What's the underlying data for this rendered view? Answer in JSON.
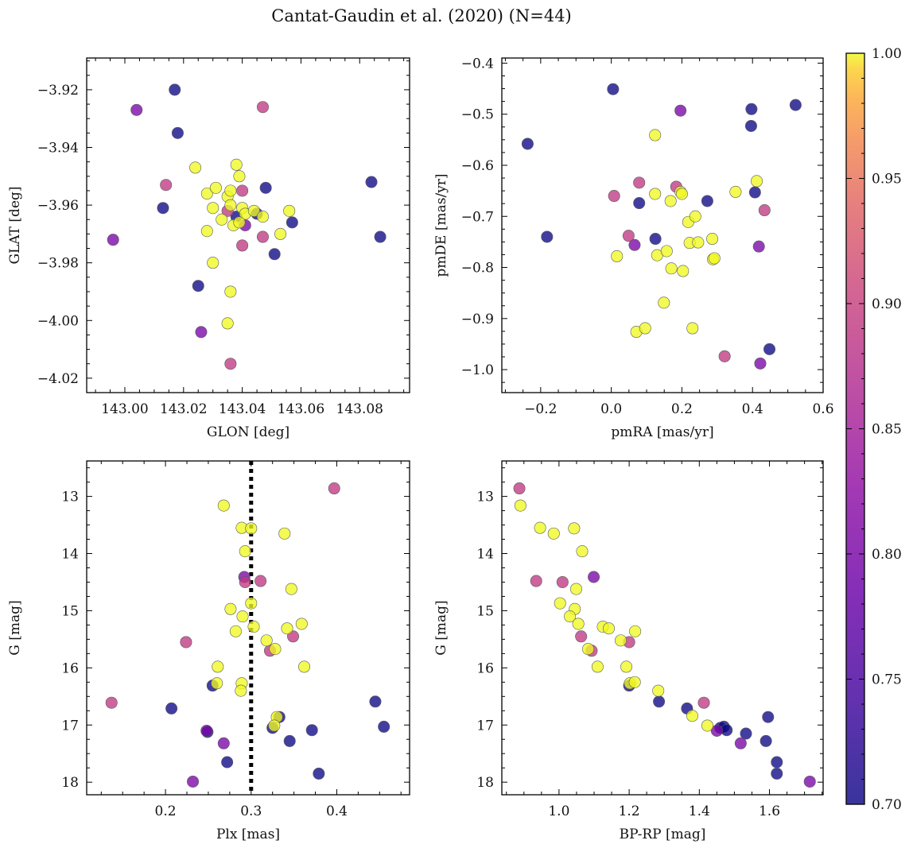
{
  "figure": {
    "title": "Cantat-Gaudin et al. (2020) (N=44)"
  },
  "colorbar": {
    "min": 0.7,
    "max": 1.0,
    "ticks": [
      "0.70",
      "0.75",
      "0.80",
      "0.85",
      "0.90",
      "0.95",
      "1.00"
    ],
    "colormap": "plasma",
    "alpha": 0.78
  },
  "chart_data": [
    {
      "type": "scatter",
      "id": "glon-glat",
      "xlabel": "GLON [deg]",
      "ylabel": "GLAT [deg]",
      "xlim": [
        142.987,
        143.097
      ],
      "ylim": [
        -3.909,
        -4.025
      ],
      "xticks": [
        143.0,
        143.02,
        143.04,
        143.06,
        143.08
      ],
      "xtick_labels": [
        "143.00",
        "143.02",
        "143.04",
        "143.06",
        "143.08"
      ],
      "yticks": [
        -3.92,
        -3.94,
        -3.96,
        -3.98,
        -4.0,
        -4.02
      ],
      "ytick_labels": [
        "−3.92",
        "−3.94",
        "−3.96",
        "−3.98",
        "−4.00",
        "−4.02"
      ],
      "points": [
        [
          143.017,
          -3.92,
          0.7
        ],
        [
          143.018,
          -3.935,
          0.7
        ],
        [
          143.013,
          -3.961,
          0.7
        ],
        [
          143.025,
          -3.988,
          0.7
        ],
        [
          143.038,
          -3.964,
          0.7
        ],
        [
          143.048,
          -3.954,
          0.7
        ],
        [
          143.051,
          -3.977,
          0.7
        ],
        [
          143.057,
          -3.966,
          0.7
        ],
        [
          143.084,
          -3.952,
          0.7
        ],
        [
          143.087,
          -3.971,
          0.7
        ],
        [
          143.045,
          -3.963,
          0.7
        ],
        [
          143.004,
          -3.927,
          0.8
        ],
        [
          142.996,
          -3.972,
          0.8
        ],
        [
          143.026,
          -4.004,
          0.8
        ],
        [
          143.041,
          -3.967,
          0.8
        ],
        [
          143.047,
          -3.926,
          0.89
        ],
        [
          143.014,
          -3.953,
          0.89
        ],
        [
          143.04,
          -3.955,
          0.89
        ],
        [
          143.04,
          -3.974,
          0.89
        ],
        [
          143.047,
          -3.971,
          0.89
        ],
        [
          143.036,
          -4.015,
          0.89
        ],
        [
          143.035,
          -3.962,
          0.89
        ],
        [
          143.024,
          -3.947,
          1.0
        ],
        [
          143.028,
          -3.956,
          1.0
        ],
        [
          143.031,
          -3.954,
          1.0
        ],
        [
          143.03,
          -3.961,
          1.0
        ],
        [
          143.033,
          -3.965,
          1.0
        ],
        [
          143.035,
          -3.957,
          1.0
        ],
        [
          143.036,
          -3.955,
          1.0
        ],
        [
          143.037,
          -3.967,
          1.0
        ],
        [
          143.038,
          -3.946,
          1.0
        ],
        [
          143.039,
          -3.95,
          1.0
        ],
        [
          143.04,
          -3.961,
          1.0
        ],
        [
          143.041,
          -3.963,
          1.0
        ],
        [
          143.044,
          -3.962,
          1.0
        ],
        [
          143.047,
          -3.964,
          1.0
        ],
        [
          143.053,
          -3.97,
          1.0
        ],
        [
          143.056,
          -3.962,
          1.0
        ],
        [
          143.03,
          -3.98,
          1.0
        ],
        [
          143.028,
          -3.969,
          1.0
        ],
        [
          143.036,
          -3.99,
          1.0
        ],
        [
          143.035,
          -4.001,
          1.0
        ],
        [
          143.036,
          -3.96,
          1.0
        ],
        [
          143.039,
          -3.966,
          1.0
        ]
      ]
    },
    {
      "type": "scatter",
      "id": "pmra-pmde",
      "xlabel": "pmRA [mas/yr]",
      "ylabel": "pmDE [mas/yr]",
      "xlim": [
        -0.31,
        0.6
      ],
      "ylim": [
        -0.39,
        -1.045
      ],
      "xticks": [
        -0.2,
        0.0,
        0.2,
        0.4,
        0.6
      ],
      "xtick_labels": [
        "−0.2",
        "0.0",
        "0.2",
        "0.4",
        "0.6"
      ],
      "yticks": [
        -0.4,
        -0.5,
        -0.6,
        -0.7,
        -0.8,
        -0.9,
        -1.0
      ],
      "ytick_labels": [
        "−0.4",
        "−0.5",
        "−0.6",
        "−0.7",
        "−0.8",
        "−0.9",
        "−1.0"
      ],
      "points": [
        [
          0.005,
          -0.451,
          0.7
        ],
        [
          -0.237,
          -0.558,
          0.7
        ],
        [
          -0.182,
          -0.74,
          0.7
        ],
        [
          0.079,
          -0.674,
          0.7
        ],
        [
          0.125,
          -0.744,
          0.7
        ],
        [
          0.272,
          -0.67,
          0.7
        ],
        [
          0.397,
          -0.49,
          0.7
        ],
        [
          0.396,
          -0.523,
          0.7
        ],
        [
          0.407,
          -0.653,
          0.7
        ],
        [
          0.448,
          -0.96,
          0.7
        ],
        [
          0.522,
          -0.482,
          0.7
        ],
        [
          0.196,
          -0.493,
          0.8
        ],
        [
          0.066,
          -0.756,
          0.8
        ],
        [
          0.418,
          -0.759,
          0.8
        ],
        [
          0.422,
          -0.988,
          0.8
        ],
        [
          0.008,
          -0.66,
          0.89
        ],
        [
          0.079,
          -0.634,
          0.89
        ],
        [
          0.049,
          -0.738,
          0.89
        ],
        [
          0.184,
          -0.642,
          0.89
        ],
        [
          0.434,
          -0.688,
          0.89
        ],
        [
          0.321,
          -0.974,
          0.89
        ],
        [
          0.124,
          -0.541,
          1.0
        ],
        [
          0.124,
          -0.656,
          1.0
        ],
        [
          0.168,
          -0.67,
          1.0
        ],
        [
          0.196,
          -0.652,
          1.0
        ],
        [
          0.2,
          -0.656,
          1.0
        ],
        [
          0.218,
          -0.711,
          1.0
        ],
        [
          0.238,
          -0.7,
          1.0
        ],
        [
          0.222,
          -0.752,
          1.0
        ],
        [
          0.246,
          -0.751,
          1.0
        ],
        [
          0.286,
          -0.744,
          1.0
        ],
        [
          0.288,
          -0.784,
          1.0
        ],
        [
          0.292,
          -0.782,
          1.0
        ],
        [
          0.13,
          -0.776,
          1.0
        ],
        [
          0.157,
          -0.768,
          1.0
        ],
        [
          0.17,
          -0.802,
          1.0
        ],
        [
          0.203,
          -0.807,
          1.0
        ],
        [
          0.149,
          -0.869,
          1.0
        ],
        [
          0.071,
          -0.926,
          1.0
        ],
        [
          0.096,
          -0.919,
          1.0
        ],
        [
          0.23,
          -0.919,
          1.0
        ],
        [
          0.016,
          -0.778,
          1.0
        ],
        [
          0.352,
          -0.652,
          1.0
        ],
        [
          0.412,
          -0.631,
          1.0
        ]
      ]
    },
    {
      "type": "scatter",
      "id": "plx-g",
      "xlabel": "Plx [mas]",
      "ylabel": "G [mag]",
      "xlim": [
        0.108,
        0.485
      ],
      "ylim": [
        12.38,
        18.22
      ],
      "xticks": [
        0.2,
        0.3,
        0.4
      ],
      "xtick_labels": [
        "0.2",
        "0.3",
        "0.4"
      ],
      "yticks": [
        13,
        14,
        15,
        16,
        17,
        18
      ],
      "ytick_labels": [
        "13",
        "14",
        "15",
        "16",
        "17",
        "18"
      ],
      "vline": 0.3,
      "points": [
        [
          0.207,
          16.71,
          0.7
        ],
        [
          0.255,
          16.31,
          0.7
        ],
        [
          0.249,
          17.12,
          0.7
        ],
        [
          0.272,
          17.65,
          0.7
        ],
        [
          0.325,
          17.05,
          0.7
        ],
        [
          0.333,
          16.86,
          0.7
        ],
        [
          0.345,
          17.28,
          0.7
        ],
        [
          0.371,
          17.09,
          0.7
        ],
        [
          0.379,
          17.85,
          0.7
        ],
        [
          0.445,
          16.59,
          0.7
        ],
        [
          0.455,
          17.03,
          0.7
        ],
        [
          0.292,
          14.41,
          0.8
        ],
        [
          0.248,
          17.1,
          0.8
        ],
        [
          0.268,
          17.32,
          0.8
        ],
        [
          0.232,
          17.99,
          0.8
        ],
        [
          0.397,
          12.86,
          0.89
        ],
        [
          0.224,
          15.55,
          0.89
        ],
        [
          0.293,
          14.5,
          0.89
        ],
        [
          0.311,
          14.48,
          0.89
        ],
        [
          0.322,
          15.7,
          0.89
        ],
        [
          0.349,
          15.45,
          0.89
        ],
        [
          0.137,
          16.61,
          0.89
        ],
        [
          0.268,
          13.16,
          1.0
        ],
        [
          0.289,
          13.55,
          1.0
        ],
        [
          0.3,
          13.56,
          1.0
        ],
        [
          0.339,
          13.65,
          1.0
        ],
        [
          0.293,
          13.96,
          1.0
        ],
        [
          0.3,
          14.87,
          1.0
        ],
        [
          0.276,
          14.97,
          1.0
        ],
        [
          0.303,
          15.28,
          1.0
        ],
        [
          0.29,
          15.1,
          1.0
        ],
        [
          0.282,
          15.36,
          1.0
        ],
        [
          0.318,
          15.52,
          1.0
        ],
        [
          0.328,
          15.67,
          1.0
        ],
        [
          0.342,
          15.31,
          1.0
        ],
        [
          0.359,
          15.23,
          1.0
        ],
        [
          0.347,
          14.62,
          1.0
        ],
        [
          0.261,
          15.98,
          1.0
        ],
        [
          0.26,
          16.27,
          1.0
        ],
        [
          0.289,
          16.27,
          1.0
        ],
        [
          0.288,
          16.4,
          1.0
        ],
        [
          0.362,
          15.98,
          1.0
        ],
        [
          0.33,
          16.86,
          1.0
        ],
        [
          0.327,
          17.01,
          1.0
        ]
      ]
    },
    {
      "type": "scatter",
      "id": "bprp-g",
      "xlabel": "BP-RP [mag]",
      "ylabel": "G [mag]",
      "xlim": [
        0.837,
        1.753
      ],
      "ylim": [
        12.38,
        18.22
      ],
      "xticks": [
        1.0,
        1.2,
        1.4,
        1.6
      ],
      "xtick_labels": [
        "1.0",
        "1.2",
        "1.4",
        "1.6"
      ],
      "yticks": [
        13,
        14,
        15,
        16,
        17,
        18
      ],
      "ytick_labels": [
        "13",
        "14",
        "15",
        "16",
        "17",
        "18"
      ],
      "points": [
        [
          1.2,
          16.31,
          0.7
        ],
        [
          1.285,
          16.59,
          0.7
        ],
        [
          1.365,
          16.71,
          0.7
        ],
        [
          1.46,
          17.05,
          0.7
        ],
        [
          1.47,
          17.03,
          0.7
        ],
        [
          1.478,
          17.09,
          0.7
        ],
        [
          1.533,
          17.15,
          0.7
        ],
        [
          1.59,
          17.28,
          0.7
        ],
        [
          1.596,
          16.86,
          0.7
        ],
        [
          1.621,
          17.65,
          0.7
        ],
        [
          1.621,
          17.85,
          0.7
        ],
        [
          1.099,
          14.41,
          0.8
        ],
        [
          1.45,
          17.1,
          0.8
        ],
        [
          1.518,
          17.32,
          0.8
        ],
        [
          1.715,
          17.99,
          0.8
        ],
        [
          0.887,
          12.86,
          0.89
        ],
        [
          0.935,
          14.48,
          0.89
        ],
        [
          1.01,
          14.5,
          0.89
        ],
        [
          1.063,
          15.45,
          0.89
        ],
        [
          1.093,
          15.7,
          0.89
        ],
        [
          1.2,
          15.55,
          0.89
        ],
        [
          1.413,
          16.61,
          0.89
        ],
        [
          0.89,
          13.16,
          1.0
        ],
        [
          0.946,
          13.55,
          1.0
        ],
        [
          0.985,
          13.65,
          1.0
        ],
        [
          1.043,
          13.56,
          1.0
        ],
        [
          1.066,
          13.96,
          1.0
        ],
        [
          1.049,
          14.62,
          1.0
        ],
        [
          1.045,
          14.97,
          1.0
        ],
        [
          1.003,
          14.87,
          1.0
        ],
        [
          1.031,
          15.1,
          1.0
        ],
        [
          1.055,
          15.23,
          1.0
        ],
        [
          1.125,
          15.28,
          1.0
        ],
        [
          1.142,
          15.31,
          1.0
        ],
        [
          1.217,
          15.36,
          1.0
        ],
        [
          1.176,
          15.52,
          1.0
        ],
        [
          1.083,
          15.67,
          1.0
        ],
        [
          1.11,
          15.98,
          1.0
        ],
        [
          1.192,
          15.98,
          1.0
        ],
        [
          1.202,
          16.27,
          1.0
        ],
        [
          1.216,
          16.25,
          1.0
        ],
        [
          1.283,
          16.4,
          1.0
        ],
        [
          1.38,
          16.84,
          1.0
        ],
        [
          1.423,
          17.01,
          1.0
        ]
      ]
    }
  ]
}
